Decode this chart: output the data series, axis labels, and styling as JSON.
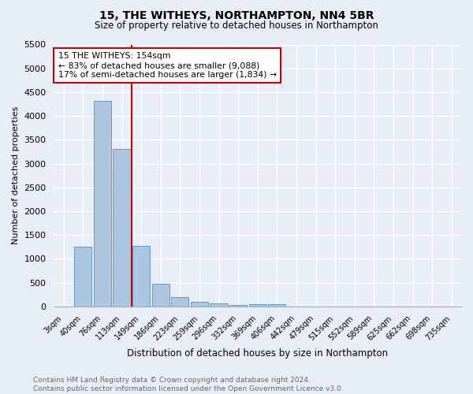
{
  "title1": "15, THE WITHEYS, NORTHAMPTON, NN4 5BR",
  "title2": "Size of property relative to detached houses in Northampton",
  "xlabel": "Distribution of detached houses by size in Northampton",
  "ylabel": "Number of detached properties",
  "footer": "Contains HM Land Registry data © Crown copyright and database right 2024.\nContains public sector information licensed under the Open Government Licence v3.0.",
  "bar_labels": [
    "3sqm",
    "40sqm",
    "76sqm",
    "113sqm",
    "149sqm",
    "186sqm",
    "223sqm",
    "259sqm",
    "296sqm",
    "332sqm",
    "369sqm",
    "406sqm",
    "442sqm",
    "479sqm",
    "515sqm",
    "552sqm",
    "589sqm",
    "625sqm",
    "662sqm",
    "698sqm",
    "735sqm"
  ],
  "bar_values": [
    0,
    1260,
    4320,
    3300,
    1280,
    480,
    200,
    95,
    60,
    35,
    50,
    55,
    0,
    0,
    0,
    0,
    0,
    0,
    0,
    0,
    0
  ],
  "bar_color": "#adc6e0",
  "bar_edge_color": "#5a9ec8",
  "vline_x_index": 4,
  "vline_color": "#cc0000",
  "annotation_text": "15 THE WITHEYS: 154sqm\n← 83% of detached houses are smaller (9,088)\n17% of semi-detached houses are larger (1,834) →",
  "annotation_box_color": "#ffffff",
  "annotation_box_edge": "#cc0000",
  "ylim": [
    0,
    5500
  ],
  "yticks": [
    0,
    500,
    1000,
    1500,
    2000,
    2500,
    3000,
    3500,
    4000,
    4500,
    5000,
    5500
  ],
  "bg_color": "#e8eef5",
  "plot_bg_color": "#e8eef5",
  "grid_color": "#ffffff",
  "title1_fontsize": 10,
  "title2_fontsize": 8.5,
  "xlabel_fontsize": 8.5,
  "ylabel_fontsize": 8,
  "tick_fontsize": 7,
  "footer_fontsize": 6.5,
  "footer_color": "#666666"
}
